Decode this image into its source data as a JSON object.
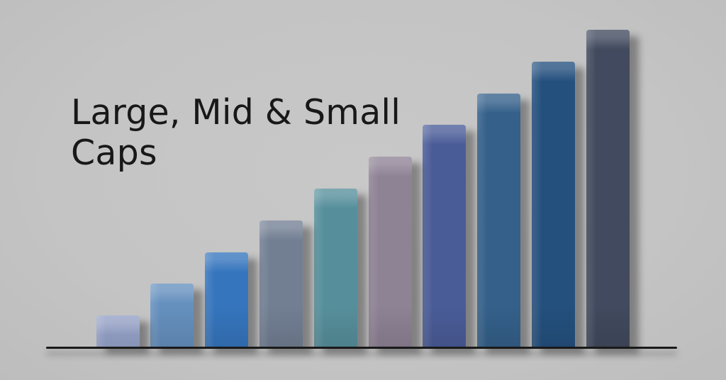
{
  "page": {
    "background_color": "#c4c4c4"
  },
  "title": {
    "text": "Large, Mid & Small Caps",
    "line1": "Large, Mid & Small",
    "line2": "Caps",
    "color": "#181818"
  },
  "chart_data": {
    "type": "bar",
    "title": "Large, Mid & Small Caps",
    "xlabel": "",
    "ylabel": "",
    "categories": [
      "",
      "",
      "",
      "",
      "",
      "",
      "",
      "",
      "",
      ""
    ],
    "values": [
      10,
      20,
      30,
      40,
      50,
      60,
      70,
      80,
      90,
      100
    ],
    "ylim": [
      0,
      100
    ],
    "gridlines": false,
    "legend": "none",
    "axis_line_color": "#1a1a1a",
    "bars": [
      {
        "value": 10,
        "color": "#97a4cb"
      },
      {
        "value": 20,
        "color": "#6590be"
      },
      {
        "value": 30,
        "color": "#3575bd"
      },
      {
        "value": 40,
        "color": "#727f93"
      },
      {
        "value": 50,
        "color": "#568f9b"
      },
      {
        "value": 60,
        "color": "#8e8295"
      },
      {
        "value": 70,
        "color": "#4a5c98"
      },
      {
        "value": 80,
        "color": "#34608a"
      },
      {
        "value": 90,
        "color": "#24507e"
      },
      {
        "value": 100,
        "color": "#414a5e"
      }
    ]
  }
}
